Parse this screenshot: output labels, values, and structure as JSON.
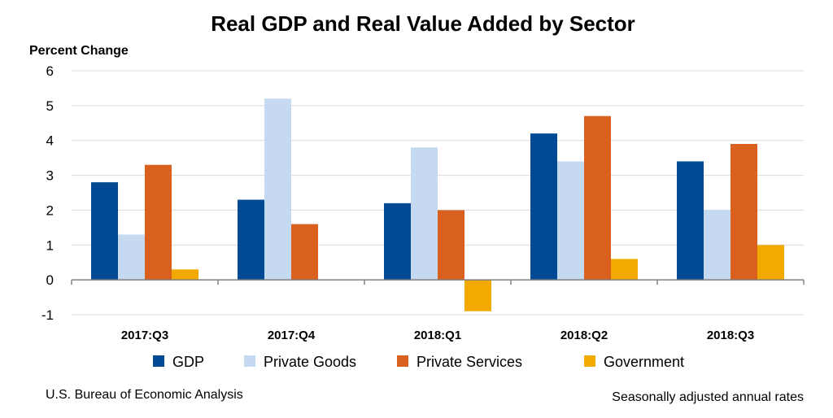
{
  "chart_data": {
    "type": "bar",
    "title": "Real GDP and Real Value Added by Sector",
    "ylabel": "Percent Change",
    "xlabel": "",
    "categories": [
      "2017:Q3",
      "2017:Q4",
      "2018:Q1",
      "2018:Q2",
      "2018:Q3"
    ],
    "series": [
      {
        "name": "GDP",
        "color": "#034a94",
        "values": [
          2.8,
          2.3,
          2.2,
          4.2,
          3.4
        ]
      },
      {
        "name": "Private Goods",
        "color": "#c5d9f1",
        "values": [
          1.3,
          5.2,
          3.8,
          3.4,
          2.0
        ]
      },
      {
        "name": "Private Services",
        "color": "#d9601e",
        "values": [
          3.3,
          1.6,
          2.0,
          4.7,
          3.9
        ]
      },
      {
        "name": "Government",
        "color": "#f2a900",
        "values": [
          0.3,
          0.0,
          -0.9,
          0.6,
          1.0
        ]
      }
    ],
    "ylim": [
      -1,
      6
    ],
    "yticks": [
      6,
      5,
      4,
      3,
      2,
      1,
      0,
      -1
    ],
    "grid": true,
    "legend_position": "bottom"
  },
  "footer": {
    "source": "U.S. Bureau of Economic Analysis",
    "note": "Seasonally adjusted annual rates"
  }
}
